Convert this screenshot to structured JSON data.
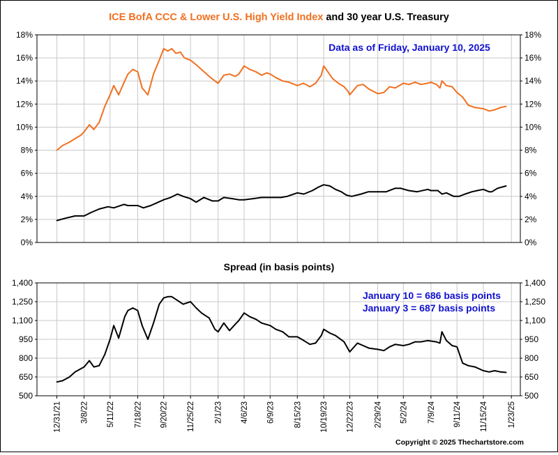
{
  "chart_data": [
    {
      "type": "line",
      "title_parts": [
        {
          "text": "ICE BofA CCC & Lower U.S. High Yield Index",
          "color": "#f07020"
        },
        {
          "text": " and 30 year U.S. Treasury",
          "color": "#000000"
        }
      ],
      "annotation": "Data as of Friday, January 10, 2025",
      "annotation_color": "#1010d0",
      "ylim": [
        0,
        18
      ],
      "yticks": [
        0,
        2,
        4,
        6,
        8,
        10,
        12,
        14,
        16,
        18
      ],
      "ytick_labels": [
        "0%",
        "2%",
        "4%",
        "6%",
        "8%",
        "10%",
        "12%",
        "14%",
        "16%",
        "18%"
      ],
      "x_range": [
        "2021-11-12",
        "2025-02-14"
      ],
      "grid": true,
      "series": [
        {
          "color": "#f07020",
          "x": [
            "2021-12-31",
            "2022-01-14",
            "2022-01-31",
            "2022-02-14",
            "2022-02-28",
            "2022-03-08",
            "2022-03-21",
            "2022-04-01",
            "2022-04-14",
            "2022-04-28",
            "2022-05-11",
            "2022-05-20",
            "2022-06-01",
            "2022-06-16",
            "2022-06-24",
            "2022-07-06",
            "2022-07-18",
            "2022-07-29",
            "2022-08-12",
            "2022-08-26",
            "2022-09-09",
            "2022-09-20",
            "2022-09-30",
            "2022-10-10",
            "2022-10-20",
            "2022-10-31",
            "2022-11-10",
            "2022-11-25",
            "2022-12-09",
            "2022-12-22",
            "2023-01-10",
            "2023-01-24",
            "2023-02-01",
            "2023-02-15",
            "2023-03-01",
            "2023-03-15",
            "2023-03-24",
            "2023-04-06",
            "2023-04-20",
            "2023-05-05",
            "2023-05-19",
            "2023-06-01",
            "2023-06-09",
            "2023-06-23",
            "2023-07-10",
            "2023-07-25",
            "2023-08-15",
            "2023-08-30",
            "2023-09-15",
            "2023-09-29",
            "2023-10-13",
            "2023-10-19",
            "2023-10-27",
            "2023-11-10",
            "2023-11-24",
            "2023-12-08",
            "2023-12-18",
            "2023-12-22",
            "2024-01-10",
            "2024-01-24",
            "2024-02-07",
            "2024-02-29",
            "2024-03-15",
            "2024-03-29",
            "2024-04-12",
            "2024-05-02",
            "2024-05-16",
            "2024-05-31",
            "2024-06-14",
            "2024-07-01",
            "2024-07-09",
            "2024-07-22",
            "2024-07-31",
            "2024-08-05",
            "2024-08-16",
            "2024-08-30",
            "2024-09-11",
            "2024-09-25",
            "2024-10-09",
            "2024-10-25",
            "2024-11-15",
            "2024-11-29",
            "2024-12-13",
            "2024-12-27",
            "2025-01-10"
          ],
          "values": [
            8.0,
            8.4,
            8.7,
            9.0,
            9.3,
            9.6,
            10.2,
            9.8,
            10.4,
            11.8,
            12.8,
            13.6,
            12.8,
            14.0,
            14.6,
            15.0,
            14.8,
            13.4,
            12.8,
            14.6,
            15.8,
            16.8,
            16.6,
            16.8,
            16.4,
            16.5,
            16.0,
            15.8,
            15.4,
            15.0,
            14.4,
            14.0,
            13.8,
            14.5,
            14.6,
            14.4,
            14.6,
            15.3,
            15.0,
            14.8,
            14.5,
            14.7,
            14.6,
            14.3,
            14.0,
            13.9,
            13.6,
            13.8,
            13.5,
            13.8,
            14.5,
            15.3,
            14.9,
            14.2,
            13.8,
            13.5,
            13.1,
            12.8,
            13.6,
            13.7,
            13.3,
            12.9,
            13.0,
            13.5,
            13.4,
            13.8,
            13.7,
            13.9,
            13.7,
            13.8,
            13.9,
            13.7,
            13.4,
            14.0,
            13.6,
            13.5,
            13.0,
            12.6,
            11.9,
            11.7,
            11.6,
            11.4,
            11.5,
            11.7,
            11.8
          ]
        },
        {
          "color": "#000000",
          "x": [
            "2021-12-31",
            "2022-01-21",
            "2022-02-14",
            "2022-03-08",
            "2022-03-25",
            "2022-04-14",
            "2022-05-06",
            "2022-05-20",
            "2022-06-14",
            "2022-06-24",
            "2022-07-18",
            "2022-08-01",
            "2022-08-19",
            "2022-09-01",
            "2022-09-20",
            "2022-10-07",
            "2022-10-24",
            "2022-11-07",
            "2022-11-25",
            "2022-12-09",
            "2022-12-28",
            "2023-01-18",
            "2023-02-01",
            "2023-02-15",
            "2023-03-08",
            "2023-03-24",
            "2023-04-06",
            "2023-04-28",
            "2023-05-19",
            "2023-06-09",
            "2023-07-06",
            "2023-07-21",
            "2023-08-15",
            "2023-08-31",
            "2023-09-21",
            "2023-10-06",
            "2023-10-19",
            "2023-11-03",
            "2023-11-17",
            "2023-12-01",
            "2023-12-14",
            "2023-12-27",
            "2024-01-19",
            "2024-02-06",
            "2024-02-29",
            "2024-03-21",
            "2024-04-12",
            "2024-04-25",
            "2024-05-15",
            "2024-06-05",
            "2024-07-01",
            "2024-07-09",
            "2024-07-26",
            "2024-08-05",
            "2024-08-16",
            "2024-09-03",
            "2024-09-16",
            "2024-10-01",
            "2024-10-18",
            "2024-10-31",
            "2024-11-15",
            "2024-11-29",
            "2024-12-06",
            "2024-12-20",
            "2025-01-10"
          ],
          "values": [
            1.9,
            2.1,
            2.3,
            2.3,
            2.6,
            2.9,
            3.1,
            3.0,
            3.3,
            3.2,
            3.2,
            3.0,
            3.2,
            3.4,
            3.7,
            3.9,
            4.2,
            4.0,
            3.8,
            3.5,
            3.9,
            3.6,
            3.6,
            3.9,
            3.8,
            3.7,
            3.7,
            3.8,
            3.9,
            3.9,
            3.9,
            4.0,
            4.3,
            4.2,
            4.5,
            4.8,
            5.0,
            4.9,
            4.6,
            4.4,
            4.1,
            4.0,
            4.2,
            4.4,
            4.4,
            4.4,
            4.7,
            4.7,
            4.5,
            4.4,
            4.6,
            4.5,
            4.5,
            4.2,
            4.3,
            4.0,
            4.0,
            4.2,
            4.4,
            4.5,
            4.6,
            4.4,
            4.4,
            4.7,
            4.9
          ]
        }
      ]
    },
    {
      "type": "line",
      "title": "Spread (in basis points)",
      "annotation_lines": [
        "January 10 = 686 basis points",
        "January 3 = 687 basis points"
      ],
      "annotation_color": "#1010d0",
      "ylim": [
        500,
        1400
      ],
      "yticks": [
        500,
        650,
        800,
        950,
        1100,
        1250,
        1400
      ],
      "ytick_labels": [
        "500",
        "650",
        "800",
        "950",
        "1,100",
        "1,250",
        "1,400"
      ],
      "x_range": [
        "2021-11-12",
        "2025-02-14"
      ],
      "grid": true,
      "xticks": [
        "2021-12-31",
        "2022-03-08",
        "2022-05-11",
        "2022-07-18",
        "2022-09-20",
        "2022-11-25",
        "2023-02-01",
        "2023-04-06",
        "2023-06-09",
        "2023-08-15",
        "2023-10-19",
        "2023-12-22",
        "2024-02-29",
        "2024-05-02",
        "2024-07-09",
        "2024-09-11",
        "2024-11-15",
        "2025-01-23"
      ],
      "xtick_labels": [
        "12/31/21",
        "3/8/22",
        "5/11/22",
        "7/18/22",
        "9/20/22",
        "11/25/22",
        "2/1/23",
        "4/6/23",
        "6/9/23",
        "8/15/23",
        "10/19/23",
        "12/22/23",
        "2/29/24",
        "5/2/24",
        "7/9/24",
        "9/11/24",
        "11/15/24",
        "1/23/25"
      ],
      "series": [
        {
          "color": "#000000",
          "x": [
            "2021-12-31",
            "2022-01-14",
            "2022-01-31",
            "2022-02-14",
            "2022-03-08",
            "2022-03-21",
            "2022-04-01",
            "2022-04-14",
            "2022-04-28",
            "2022-05-11",
            "2022-05-20",
            "2022-06-01",
            "2022-06-16",
            "2022-06-24",
            "2022-07-06",
            "2022-07-18",
            "2022-07-29",
            "2022-08-12",
            "2022-08-26",
            "2022-09-09",
            "2022-09-20",
            "2022-09-30",
            "2022-10-10",
            "2022-10-24",
            "2022-11-07",
            "2022-11-25",
            "2022-12-09",
            "2022-12-22",
            "2023-01-10",
            "2023-01-24",
            "2023-02-01",
            "2023-02-15",
            "2023-03-01",
            "2023-03-15",
            "2023-03-24",
            "2023-04-06",
            "2023-04-20",
            "2023-05-05",
            "2023-05-19",
            "2023-06-09",
            "2023-06-23",
            "2023-07-10",
            "2023-07-25",
            "2023-08-15",
            "2023-08-31",
            "2023-09-15",
            "2023-09-29",
            "2023-10-13",
            "2023-10-19",
            "2023-11-03",
            "2023-11-17",
            "2023-12-08",
            "2023-12-22",
            "2024-01-10",
            "2024-01-24",
            "2024-02-07",
            "2024-02-29",
            "2024-03-15",
            "2024-03-29",
            "2024-04-12",
            "2024-05-02",
            "2024-05-16",
            "2024-05-31",
            "2024-06-14",
            "2024-07-01",
            "2024-07-22",
            "2024-07-31",
            "2024-08-05",
            "2024-08-16",
            "2024-08-30",
            "2024-09-11",
            "2024-09-25",
            "2024-10-09",
            "2024-10-25",
            "2024-11-15",
            "2024-11-29",
            "2024-12-13",
            "2024-12-27",
            "2025-01-10"
          ],
          "values": [
            610,
            620,
            650,
            690,
            730,
            780,
            730,
            740,
            830,
            950,
            1060,
            960,
            1130,
            1180,
            1200,
            1180,
            1060,
            950,
            1080,
            1230,
            1280,
            1290,
            1290,
            1260,
            1230,
            1250,
            1200,
            1160,
            1120,
            1030,
            1010,
            1080,
            1020,
            1070,
            1100,
            1160,
            1130,
            1110,
            1080,
            1060,
            1030,
            1010,
            970,
            970,
            940,
            910,
            920,
            980,
            1030,
            1000,
            980,
            930,
            850,
            920,
            900,
            880,
            870,
            860,
            890,
            910,
            900,
            910,
            930,
            930,
            940,
            930,
            920,
            1010,
            940,
            900,
            890,
            760,
            740,
            730,
            700,
            690,
            700,
            690,
            686
          ]
        }
      ]
    },
    {
      "type": "table",
      "copyright": "Copyright © 2025 Thechartstore.com"
    }
  ]
}
